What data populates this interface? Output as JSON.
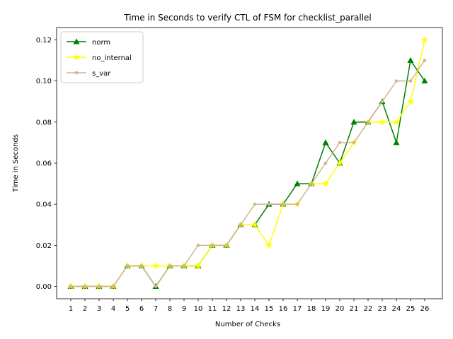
{
  "chart_data": {
    "type": "line",
    "title": "Time in Seconds to verify CTL of FSM for checklist_parallel",
    "xlabel": "Number of Checks",
    "ylabel": "Time in Seconds",
    "categories": [
      "1",
      "2",
      "3",
      "4",
      "5",
      "6",
      "7",
      "8",
      "9",
      "10",
      "11",
      "12",
      "13",
      "14",
      "15",
      "16",
      "17",
      "18",
      "19",
      "20",
      "21",
      "22",
      "23",
      "24",
      "25",
      "26"
    ],
    "ylim": [
      -0.006,
      0.126
    ],
    "yticks": [
      "0.00",
      "0.02",
      "0.04",
      "0.06",
      "0.08",
      "0.10",
      "0.12"
    ],
    "grid": false,
    "legend_position": "top-left",
    "series": [
      {
        "name": "norm",
        "color": "#008000",
        "marker": "triangle",
        "values": [
          0.0,
          0.0,
          0.0,
          0.0,
          0.01,
          0.01,
          0.0,
          0.01,
          0.01,
          0.01,
          0.02,
          0.02,
          0.03,
          0.03,
          0.04,
          0.04,
          0.05,
          0.05,
          0.07,
          0.06,
          0.08,
          0.08,
          0.09,
          0.07,
          0.11,
          0.1
        ]
      },
      {
        "name": "no_internal",
        "color": "#ffff00",
        "marker": "star",
        "values": [
          0.0,
          0.0,
          0.0,
          0.0,
          0.01,
          0.01,
          0.01,
          0.01,
          0.01,
          0.01,
          0.02,
          0.02,
          0.03,
          0.03,
          0.02,
          0.04,
          0.04,
          0.05,
          0.05,
          0.06,
          0.07,
          0.08,
          0.08,
          0.08,
          0.09,
          0.12
        ]
      },
      {
        "name": "s_var",
        "color": "#d2b48c",
        "marker": "dot",
        "values": [
          0.0,
          0.0,
          0.0,
          0.0,
          0.01,
          0.01,
          0.0,
          0.01,
          0.01,
          0.02,
          0.02,
          0.02,
          0.03,
          0.04,
          0.04,
          0.04,
          0.04,
          0.05,
          0.06,
          0.07,
          0.07,
          0.08,
          0.09,
          0.1,
          0.1,
          0.11
        ]
      }
    ]
  }
}
